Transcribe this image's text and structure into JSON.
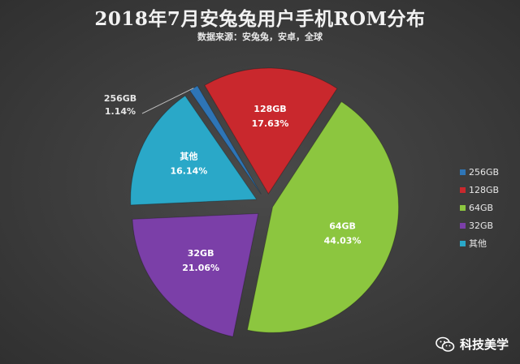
{
  "chart_data": {
    "type": "pie",
    "title": "2018年7月安兔兔用户手机ROM分布",
    "subtitle": "数据来源：安兔兔，安卓，全球",
    "slices": [
      {
        "name": "256GB",
        "value": 1.14,
        "label": "1.14%",
        "color": "#2e75b6",
        "legend_text": "256GB"
      },
      {
        "name": "128GB",
        "value": 17.63,
        "label": "17.63%",
        "color": "#c9282d",
        "legend_text": "128GB"
      },
      {
        "name": "64GB",
        "value": 44.03,
        "label": "44.03%",
        "color": "#8cc63f",
        "legend_text": "64GB"
      },
      {
        "name": "32GB",
        "value": 21.06,
        "label": "21.06%",
        "color": "#7b3fa8",
        "legend_text": "32GB"
      },
      {
        "name": "其他",
        "value": 16.14,
        "label": "16.14%",
        "color": "#2aa8c8",
        "legend_text": "其他"
      }
    ],
    "legend_position": "right"
  },
  "watermark": {
    "text": "科技美学",
    "icon": "wechat-icon"
  }
}
